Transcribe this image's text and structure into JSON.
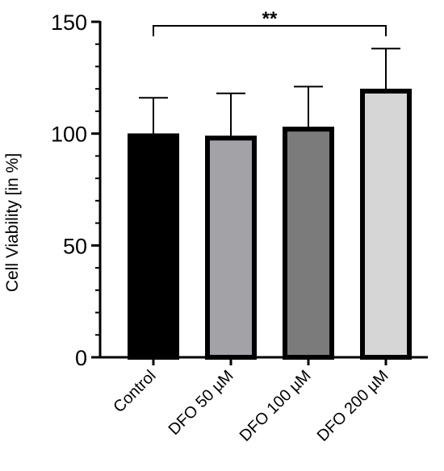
{
  "chart_data": {
    "type": "bar",
    "title": "",
    "xlabel": "",
    "ylabel": "Cell Viability [in %]",
    "ylim": [
      0,
      150
    ],
    "yticks": [
      0,
      50,
      100,
      150
    ],
    "grid": false,
    "categories": [
      "Control",
      "DFO 50 µM",
      "DFO 100 µM",
      "DFO 200 µM"
    ],
    "values": [
      99,
      98,
      102,
      119
    ],
    "error_upper": [
      116,
      118,
      121,
      138
    ],
    "colors": [
      "#000000",
      "#a2a2a7",
      "#7b7b7b",
      "#d6d6d6"
    ],
    "annotations": [
      {
        "from": "Control",
        "to": "DFO 200 µM",
        "label": "**"
      }
    ]
  }
}
